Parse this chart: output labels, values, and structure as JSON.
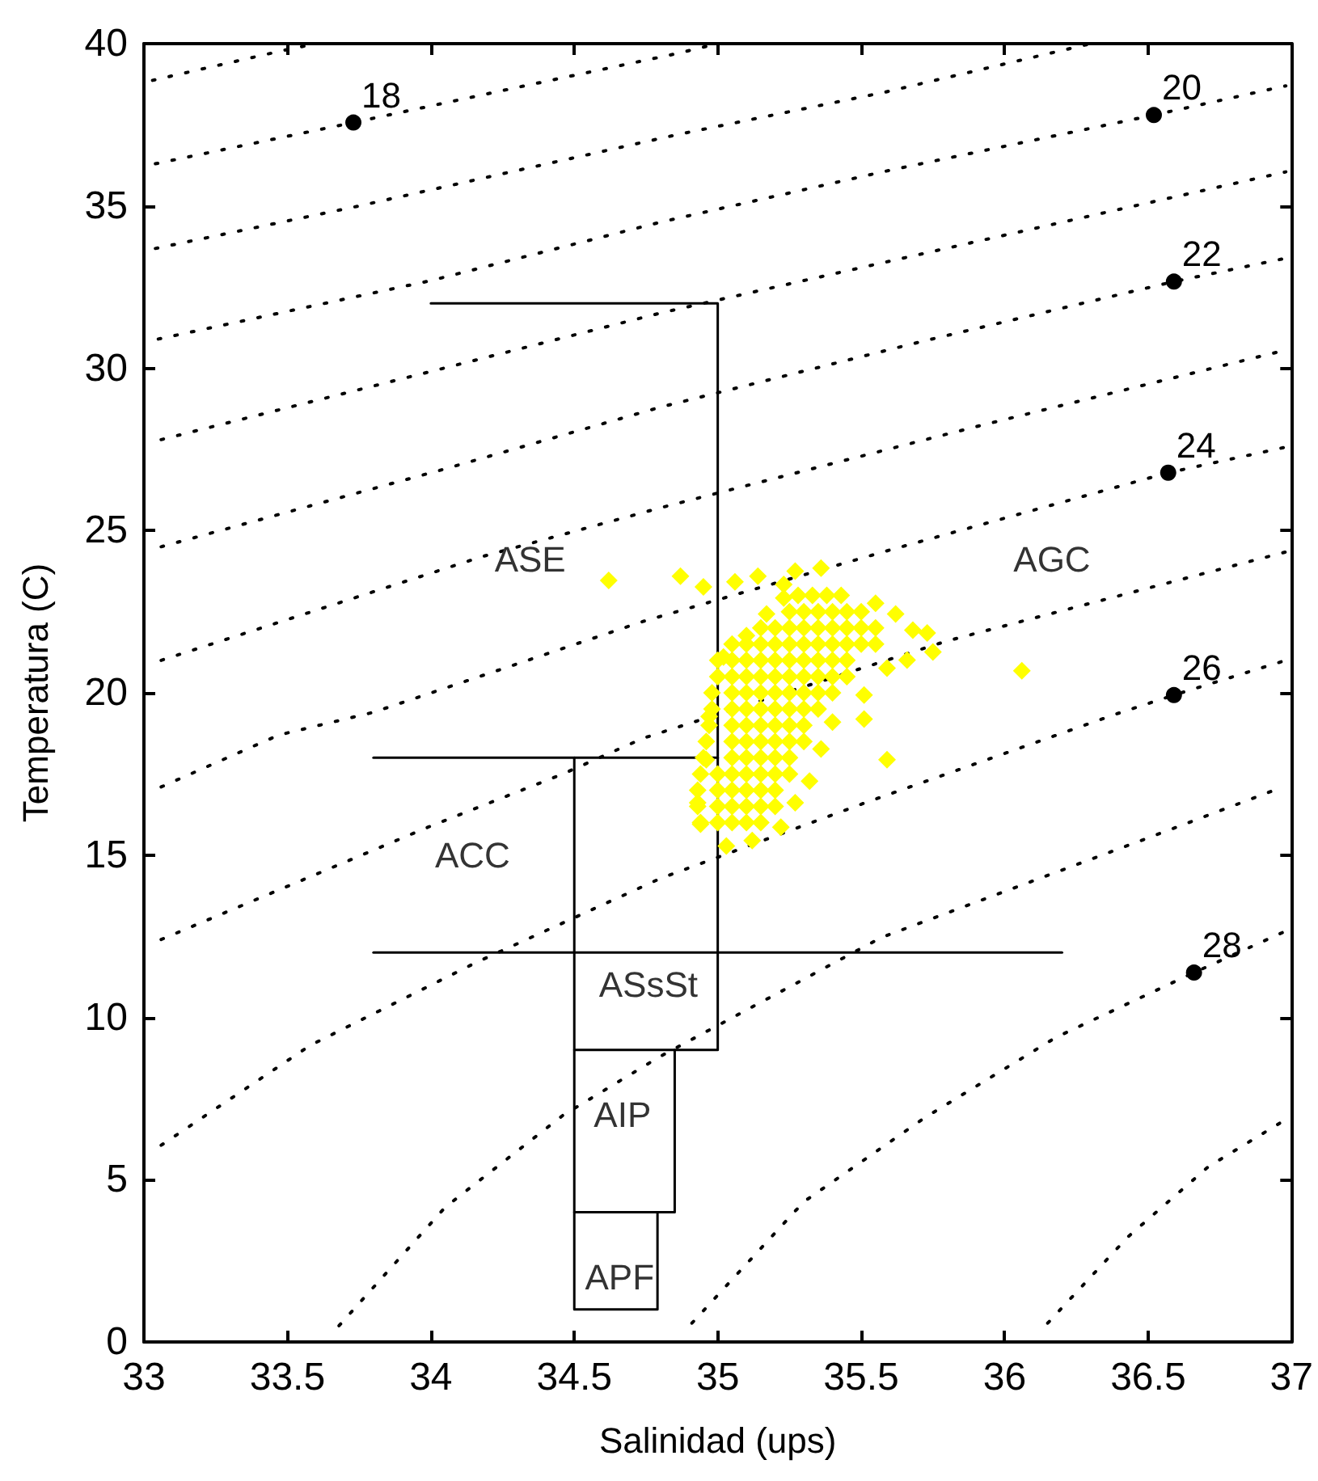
{
  "chart_data": {
    "type": "scatter",
    "xlabel": "Salinidad (ups)",
    "ylabel": "Temperatura (C)",
    "xlim": [
      33,
      37
    ],
    "xticks": [
      33,
      33.5,
      34,
      34.5,
      35,
      35.5,
      36,
      36.5,
      37
    ],
    "ylim": [
      0,
      40
    ],
    "yticks": [
      0,
      5,
      10,
      15,
      20,
      25,
      30,
      35,
      40
    ],
    "grid": false,
    "series": [
      {
        "type": "line",
        "line_style": "dotted",
        "marker": "none",
        "color": "#000000",
        "x": [
          33.03,
          33.49,
          33.6
        ],
        "values": [
          38.87,
          39.8,
          40
        ]
      },
      {
        "type": "line",
        "line_style": "dotted",
        "marker": "none",
        "color": "#000000",
        "x": [
          33.04,
          33.73,
          34.3,
          34.86,
          35.0
        ],
        "values": [
          36.3,
          37.57,
          38.65,
          39.7,
          40
        ]
      },
      {
        "type": "line",
        "line_style": "dotted",
        "marker": "none",
        "color": "#000000",
        "x": [
          33.04,
          33.75,
          34.86,
          35.58,
          36.3
        ],
        "values": [
          33.69,
          35.0,
          37.2,
          38.5,
          40
        ]
      },
      {
        "type": "line",
        "line_style": "dotted",
        "marker": "none",
        "color": "#000000",
        "x": [
          33.05,
          34.0,
          34.8,
          35.6,
          36.52,
          36.98
        ],
        "values": [
          30.9,
          32.7,
          34.5,
          36.1,
          37.8,
          38.7
        ]
      },
      {
        "type": "line",
        "line_style": "dotted",
        "marker": "none",
        "color": "#000000",
        "x": [
          33.06,
          34.0,
          34.8,
          35.9,
          36.98
        ],
        "values": [
          27.8,
          29.9,
          31.7,
          33.9,
          36.05
        ]
      },
      {
        "type": "line",
        "line_style": "dotted",
        "marker": "none",
        "color": "#000000",
        "x": [
          33.06,
          34.05,
          34.8,
          35.7,
          36.59,
          36.98
        ],
        "values": [
          24.5,
          26.9,
          28.8,
          30.8,
          32.67,
          33.39
        ]
      },
      {
        "type": "line",
        "line_style": "dotted",
        "marker": "none",
        "color": "#000000",
        "x": [
          33.06,
          34.18,
          34.8,
          35.9,
          36.98
        ],
        "values": [
          21.0,
          24.2,
          25.7,
          28.2,
          30.56
        ]
      },
      {
        "type": "line",
        "line_style": "dotted",
        "marker": "none",
        "color": "#000000",
        "x": [
          33.06,
          33.47,
          33.8,
          34.74,
          35.6,
          36.57,
          36.98
        ],
        "values": [
          17.1,
          18.7,
          19.4,
          22.2,
          24.4,
          26.78,
          27.57
        ]
      },
      {
        "type": "line",
        "line_style": "dotted",
        "marker": "none",
        "color": "#000000",
        "x": [
          33.06,
          33.99,
          34.46,
          34.74,
          35.8,
          36.98
        ],
        "values": [
          12.4,
          15.86,
          17.5,
          18.6,
          21.6,
          24.34
        ]
      },
      {
        "type": "line",
        "line_style": "dotted",
        "marker": "none",
        "color": "#000000",
        "x": [
          33.06,
          33.58,
          34.16,
          34.8,
          35.51,
          36.39,
          36.59,
          36.98
        ],
        "values": [
          6.06,
          9.14,
          11.7,
          14.28,
          16.6,
          19.35,
          19.93,
          21.0
        ]
      },
      {
        "type": "line",
        "line_style": "dotted",
        "marker": "none",
        "color": "#000000",
        "x": [
          33.68,
          34.05,
          34.46,
          34.8,
          35.57,
          36.5,
          36.97
        ],
        "values": [
          0.5,
          4.15,
          6.98,
          8.8,
          12.46,
          15.53,
          17.1
        ]
      },
      {
        "type": "line",
        "line_style": "dotted",
        "marker": "none",
        "color": "#000000",
        "x": [
          34.91,
          35.3,
          35.72,
          36.18,
          36.66,
          36.97
        ],
        "values": [
          0.58,
          4.32,
          6.9,
          9.39,
          11.38,
          12.62
        ]
      },
      {
        "type": "line",
        "line_style": "dotted",
        "marker": "none",
        "color": "#000000",
        "x": [
          36.15,
          36.43,
          36.71,
          36.97
        ],
        "values": [
          0.58,
          3.24,
          5.4,
          6.8
        ]
      },
      {
        "type": "line",
        "line_style": "solid",
        "marker": "none",
        "color": "#000000",
        "x": [
          34.0,
          35.0,
          35.0,
          34.5
        ],
        "values": [
          32,
          32,
          9,
          9
        ]
      },
      {
        "type": "line",
        "line_style": "solid",
        "marker": "none",
        "color": "#000000",
        "x": [
          33.8,
          35.0
        ],
        "values": [
          18,
          18
        ]
      },
      {
        "type": "line",
        "line_style": "solid",
        "marker": "none",
        "color": "#000000",
        "x": [
          33.8,
          36.2
        ],
        "values": [
          12,
          12
        ]
      },
      {
        "type": "line",
        "line_style": "solid",
        "marker": "none",
        "color": "#000000",
        "x": [
          34.5,
          34.5,
          34.79,
          34.79
        ],
        "values": [
          18,
          1,
          1,
          4
        ]
      },
      {
        "type": "line",
        "line_style": "solid",
        "marker": "none",
        "color": "#000000",
        "x": [
          34.5,
          34.85,
          34.85
        ],
        "values": [
          4,
          4,
          9
        ]
      },
      {
        "marker": "diamond",
        "color": "#ffff00",
        "x": [
          34.62,
          34.87,
          34.95,
          35.06,
          35.14,
          35.23,
          35.27,
          35.36,
          35.55,
          35.62,
          35.68,
          35.73,
          35.75,
          35.66,
          35.59,
          35.59,
          36.06,
          35.51,
          35.51,
          35.4,
          35.36,
          35.32,
          35.27,
          35.22,
          35.12,
          35.03,
          34.94,
          34.93,
          34.96,
          34.97,
          35.02,
          35.1,
          35.17,
          35.23,
          35.28,
          35.33,
          35.38,
          35.43,
          35.25,
          35.3,
          35.35,
          35.4,
          35.45,
          35.5,
          35.15,
          35.2,
          35.25,
          35.3,
          35.35,
          35.4,
          35.45,
          35.5,
          35.55,
          35.05,
          35.1,
          35.15,
          35.2,
          35.25,
          35.3,
          35.35,
          35.4,
          35.45,
          35.5,
          35.55,
          35.0,
          35.05,
          35.1,
          35.15,
          35.2,
          35.25,
          35.3,
          35.35,
          35.4,
          35.45,
          35.0,
          35.05,
          35.1,
          35.15,
          35.2,
          35.25,
          35.3,
          35.35,
          35.4,
          35.45,
          34.98,
          35.05,
          35.1,
          35.15,
          35.2,
          35.25,
          35.3,
          35.35,
          35.4,
          34.98,
          35.05,
          35.1,
          35.15,
          35.2,
          35.25,
          35.3,
          35.35,
          34.97,
          35.05,
          35.1,
          35.15,
          35.2,
          35.25,
          35.3,
          34.96,
          35.05,
          35.1,
          35.15,
          35.2,
          35.25,
          35.3,
          34.95,
          35.05,
          35.1,
          35.15,
          35.2,
          35.25,
          34.94,
          35.0,
          35.05,
          35.1,
          35.15,
          35.2,
          35.25,
          34.93,
          35.0,
          35.05,
          35.1,
          35.15,
          35.2,
          34.93,
          35.0,
          35.05,
          35.1,
          35.15,
          35.2,
          34.94,
          35.0,
          35.05,
          35.1,
          35.15
        ],
        "values": [
          23.46,
          23.59,
          23.26,
          23.42,
          23.59,
          23.34,
          23.75,
          23.84,
          22.76,
          22.43,
          21.93,
          21.84,
          21.26,
          21.01,
          20.76,
          17.94,
          20.68,
          19.93,
          19.19,
          19.1,
          18.27,
          17.28,
          16.61,
          15.86,
          15.45,
          15.28,
          15.95,
          16.61,
          17.94,
          19.27,
          21.1,
          21.76,
          22.43,
          22.92,
          23,
          23,
          23,
          23,
          22.5,
          22.5,
          22.5,
          22.5,
          22.5,
          22.5,
          22,
          22,
          22,
          22,
          22,
          22,
          22,
          22,
          22,
          21.5,
          21.5,
          21.5,
          21.5,
          21.5,
          21.5,
          21.5,
          21.5,
          21.5,
          21.5,
          21.5,
          21,
          21,
          21,
          21,
          21,
          21,
          21,
          21,
          21,
          21,
          20.5,
          20.5,
          20.5,
          20.5,
          20.5,
          20.5,
          20.5,
          20.5,
          20.5,
          20.5,
          20,
          20,
          20,
          20,
          20,
          20,
          20,
          20,
          20,
          19.5,
          19.5,
          19.5,
          19.5,
          19.5,
          19.5,
          19.5,
          19.5,
          19,
          19,
          19,
          19,
          19,
          19,
          19,
          18.5,
          18.5,
          18.5,
          18.5,
          18.5,
          18.5,
          18.5,
          18,
          18,
          18,
          18,
          18,
          18,
          17.5,
          17.5,
          17.5,
          17.5,
          17.5,
          17.5,
          17.5,
          17,
          17,
          17,
          17,
          17,
          17,
          16.5,
          16.5,
          16.5,
          16.5,
          16.5,
          16.5,
          16,
          16,
          16,
          16,
          16
        ]
      },
      {
        "marker": "circle",
        "color": "#000000",
        "x": [
          33.73,
          36.52,
          36.59,
          36.57,
          36.59,
          36.66
        ],
        "values": [
          37.57,
          37.8,
          32.67,
          26.78,
          19.93,
          11.38
        ]
      }
    ],
    "annotations": [
      "ASE",
      "AGC",
      "ACC",
      "ASsSt",
      "AIP",
      "APF",
      {
        "text": "18",
        "x": 33.73,
        "y": 37.57
      },
      {
        "text": "20",
        "x": 36.52,
        "y": 37.8
      },
      {
        "text": "22",
        "x": 36.59,
        "y": 32.67
      },
      {
        "text": "24",
        "x": 36.57,
        "y": 26.78
      },
      {
        "text": "26",
        "x": 36.59,
        "y": 19.93
      },
      {
        "text": "28",
        "x": 36.66,
        "y": 11.38
      }
    ]
  }
}
